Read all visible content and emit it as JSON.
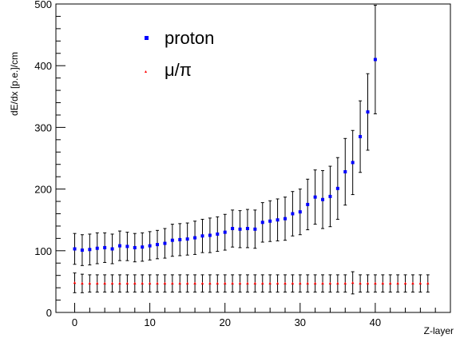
{
  "chart_data": {
    "type": "scatter",
    "xlabel": "Z-layer",
    "ylabel": "dE/dx [p.e.]/cm",
    "xlim": [
      -2.5,
      50
    ],
    "ylim": [
      0,
      500
    ],
    "x_ticks": [
      0,
      10,
      20,
      30,
      40
    ],
    "y_ticks": [
      0,
      100,
      200,
      300,
      400,
      500
    ],
    "legend_position": "top-center",
    "grid": false,
    "series": [
      {
        "name": "proton",
        "color": "#0000ff",
        "marker": "square",
        "x": [
          0,
          1,
          2,
          3,
          4,
          5,
          6,
          7,
          8,
          9,
          10,
          11,
          12,
          13,
          14,
          15,
          16,
          17,
          18,
          19,
          20,
          21,
          22,
          23,
          24,
          25,
          26,
          27,
          28,
          29,
          30,
          31,
          32,
          33,
          34,
          35,
          36,
          37,
          38,
          39,
          40
        ],
        "y": [
          103,
          101,
          102,
          104,
          105,
          103,
          108,
          107,
          105,
          106,
          108,
          110,
          112,
          117,
          118,
          119,
          121,
          124,
          125,
          127,
          130,
          136,
          135,
          136,
          135,
          146,
          148,
          150,
          152,
          160,
          163,
          175,
          187,
          183,
          188,
          201,
          228,
          243,
          285,
          325,
          410
        ],
        "err": [
          25,
          25,
          25,
          25,
          24,
          24,
          24,
          23,
          23,
          23,
          23,
          23,
          24,
          26,
          26,
          26,
          27,
          27,
          28,
          28,
          29,
          30,
          30,
          31,
          31,
          32,
          33,
          34,
          35,
          36,
          37,
          41,
          44,
          47,
          49,
          50,
          54,
          52,
          58,
          62,
          88
        ]
      },
      {
        "name": "μ/π",
        "color": "#ff0000",
        "marker": "triangle",
        "x": [
          0,
          1,
          2,
          3,
          4,
          5,
          6,
          7,
          8,
          9,
          10,
          11,
          12,
          13,
          14,
          15,
          16,
          17,
          18,
          19,
          20,
          21,
          22,
          23,
          24,
          25,
          26,
          27,
          28,
          29,
          30,
          31,
          32,
          33,
          34,
          35,
          36,
          37,
          38,
          39,
          40,
          41,
          42,
          43,
          44,
          45,
          46,
          47
        ],
        "y": [
          48,
          47,
          47,
          47,
          47,
          47,
          47,
          47,
          47,
          47,
          47,
          47,
          47,
          47,
          47,
          47,
          47,
          47,
          47,
          47,
          47,
          47,
          47,
          47,
          47,
          47,
          47,
          47,
          47,
          47,
          47,
          47,
          47,
          47,
          47,
          47,
          47,
          48,
          47,
          47,
          47,
          47,
          47,
          47,
          47,
          47,
          47,
          47
        ],
        "err": [
          16,
          15,
          14,
          14,
          14,
          14,
          14,
          14,
          14,
          14,
          14,
          14,
          14,
          14,
          14,
          14,
          14,
          14,
          14,
          14,
          14,
          14,
          14,
          14,
          14,
          14,
          14,
          14,
          14,
          14,
          14,
          14,
          14,
          14,
          14,
          14,
          14,
          18,
          14,
          14,
          14,
          14,
          14,
          14,
          14,
          14,
          14,
          14
        ]
      }
    ]
  }
}
